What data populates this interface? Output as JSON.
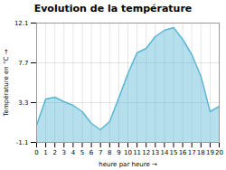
{
  "chart_data": {
    "type": "area",
    "title": "Evolution de la température",
    "xlabel": "heure par heure",
    "ylabel": "Température en °C",
    "x": [
      0,
      1,
      2,
      3,
      4,
      5,
      6,
      7,
      8,
      9,
      10,
      11,
      12,
      13,
      14,
      15,
      16,
      17,
      18,
      19,
      20
    ],
    "values": [
      0.8,
      3.7,
      3.9,
      3.4,
      3.0,
      2.3,
      1.0,
      0.3,
      1.2,
      3.8,
      6.5,
      8.8,
      9.3,
      10.6,
      11.3,
      11.6,
      10.3,
      8.6,
      6.2,
      2.3,
      2.9
    ],
    "color": "#5ab8d4",
    "xlim": [
      0,
      20
    ],
    "xticks": [
      0,
      1,
      2,
      3,
      4,
      5,
      6,
      7,
      8,
      9,
      10,
      11,
      12,
      13,
      14,
      15,
      16,
      17,
      18,
      19,
      20
    ],
    "ylim": [
      -1.1,
      12.1
    ],
    "yticks": [
      -1.1,
      3.3,
      7.7,
      12.1
    ],
    "grid": true
  }
}
